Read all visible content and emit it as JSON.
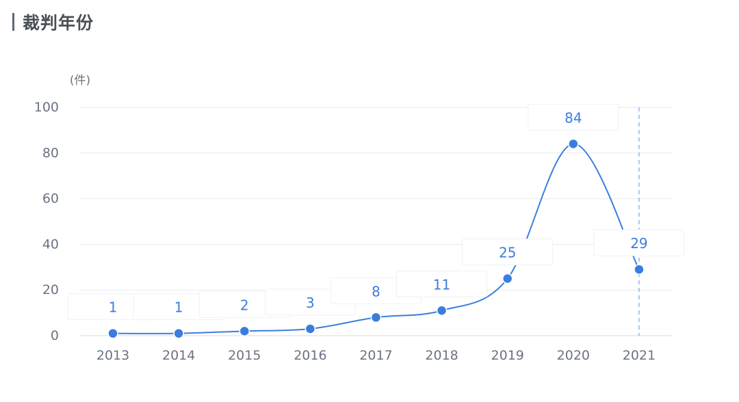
{
  "header": {
    "title": "裁判年份"
  },
  "chart_data": {
    "type": "line",
    "categories": [
      "2013",
      "2014",
      "2015",
      "2016",
      "2017",
      "2018",
      "2019",
      "2020",
      "2021"
    ],
    "values": [
      1,
      1,
      2,
      3,
      8,
      11,
      25,
      84,
      29
    ],
    "ylabel": "(件)",
    "ylim": [
      0,
      100
    ],
    "yticks": [
      0,
      20,
      40,
      60,
      80,
      100
    ],
    "grid": true,
    "highlighted_category": "2021",
    "colors": {
      "line": "#3b7ddd",
      "point": "#3b7ddd",
      "label": "#3b7ddd",
      "axis_text": "#6b7280",
      "grid": "#e8eaee",
      "crosshair": "#6fa0e8"
    }
  }
}
